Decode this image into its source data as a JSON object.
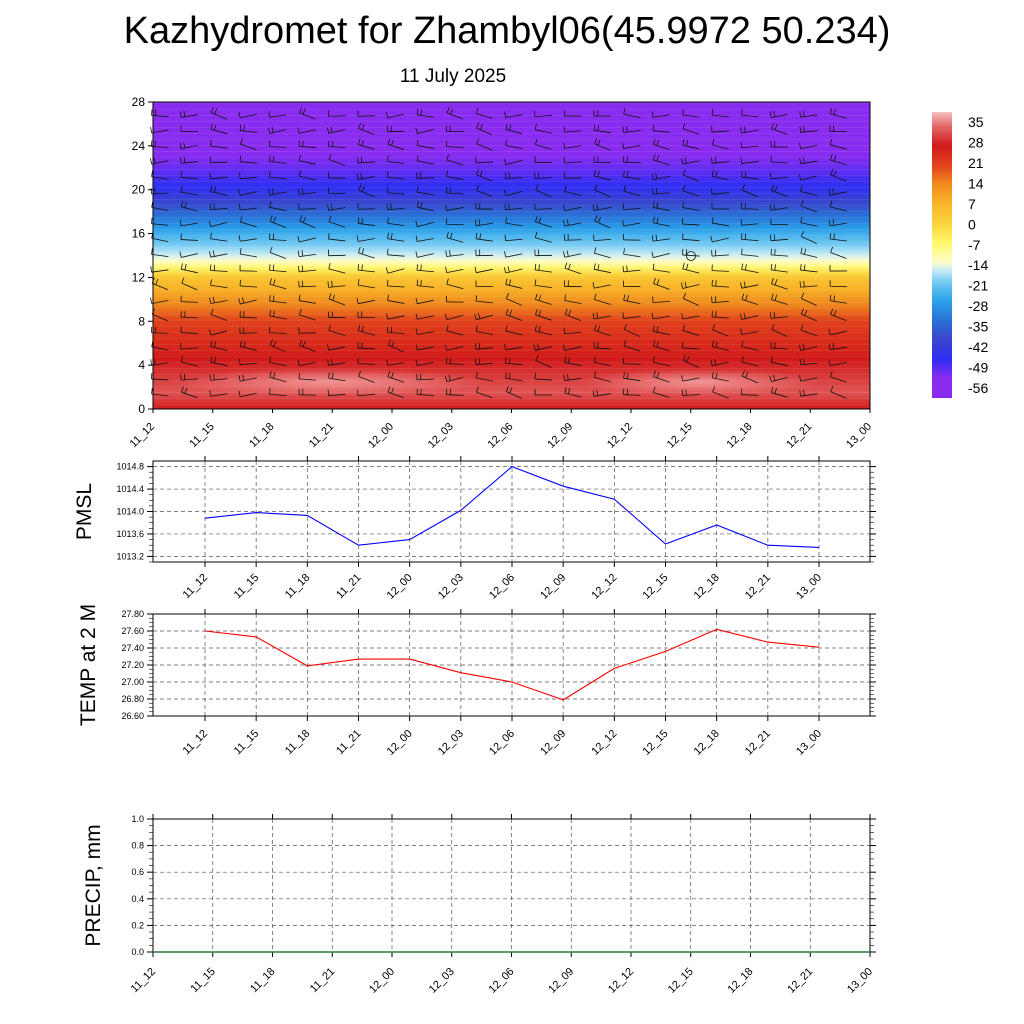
{
  "title": "Kazhydromet for Zhambyl06(45.9972 50.234)",
  "subtitle": "11 July 2025",
  "chart_data": [
    {
      "type": "heatmap",
      "title": "",
      "xlabel": "",
      "ylabel": "",
      "x_tick_labels": [
        "11_12",
        "11_15",
        "11_18",
        "11_21",
        "12_00",
        "12_03",
        "12_06",
        "12_09",
        "12_12",
        "12_15",
        "12_18",
        "12_21",
        "13_00"
      ],
      "y_tick_labels": [
        "0",
        "4",
        "8",
        "12",
        "16",
        "20",
        "24",
        "28"
      ],
      "ylim": [
        0,
        28
      ],
      "colorbar_labels": [
        "35",
        "28",
        "21",
        "14",
        "7",
        "0",
        "-7",
        "-14",
        "-21",
        "-28",
        "-35",
        "-42",
        "-49",
        "-56"
      ],
      "color_scale": [
        {
          "value": 40,
          "color": "#f2c0c0"
        },
        {
          "value": 35,
          "color": "#e56b6b"
        },
        {
          "value": 28,
          "color": "#d11a1a"
        },
        {
          "value": 21,
          "color": "#e0401c"
        },
        {
          "value": 14,
          "color": "#f08a1e"
        },
        {
          "value": 7,
          "color": "#f7b528"
        },
        {
          "value": 0,
          "color": "#fad23c"
        },
        {
          "value": -7,
          "color": "#fff86a"
        },
        {
          "value": -14,
          "color": "#fffbc8"
        },
        {
          "value": -17,
          "color": "#c6ecf8"
        },
        {
          "value": -21,
          "color": "#78cbf2"
        },
        {
          "value": -28,
          "color": "#2aa2ea"
        },
        {
          "value": -35,
          "color": "#2a70d6"
        },
        {
          "value": -42,
          "color": "#3a44cc"
        },
        {
          "value": -49,
          "color": "#2f2ff2"
        },
        {
          "value": -56,
          "color": "#8a2cf0"
        }
      ],
      "profile": [
        {
          "height": 0,
          "temp": 28
        },
        {
          "height": 1.5,
          "temp": 33
        },
        {
          "height": 4,
          "temp": 29
        },
        {
          "height": 8,
          "temp": 21
        },
        {
          "height": 12,
          "temp": 3
        },
        {
          "height": 13.5,
          "temp": -14
        },
        {
          "height": 16,
          "temp": -26
        },
        {
          "height": 20,
          "temp": -48
        },
        {
          "height": 21.5,
          "temp": -52
        },
        {
          "height": 24,
          "temp": -58
        },
        {
          "height": 28,
          "temp": -60
        }
      ]
    },
    {
      "type": "line",
      "title": "",
      "ylabel": "PMSL",
      "categories": [
        "11_12",
        "11_15",
        "11_18",
        "11_21",
        "12_00",
        "12_03",
        "12_06",
        "12_09",
        "12_12",
        "12_15",
        "12_18",
        "12_21",
        "13_00"
      ],
      "series": [
        {
          "name": "",
          "color": "#0000ff",
          "values": [
            1013.88,
            1013.98,
            1013.93,
            1013.4,
            1013.5,
            1014.02,
            1014.8,
            1014.45,
            1014.22,
            1013.42,
            1013.76,
            1013.4,
            1013.36
          ]
        }
      ],
      "ylim": [
        1013.1,
        1014.9
      ],
      "y_ticks": [
        1013.2,
        1013.6,
        1014.0,
        1014.4,
        1014.8
      ],
      "y_tick_labels": [
        "1013.2",
        "1013.6",
        "1014.0",
        "1014.4",
        "1014.8"
      ],
      "grid": true
    },
    {
      "type": "line",
      "title": "",
      "ylabel": "TEMP at 2 M",
      "categories": [
        "11_12",
        "11_15",
        "11_18",
        "11_21",
        "12_00",
        "12_03",
        "12_06",
        "12_09",
        "12_12",
        "12_15",
        "12_18",
        "12_21",
        "13_00"
      ],
      "series": [
        {
          "name": "",
          "color": "#ff0000",
          "values": [
            27.6,
            27.53,
            27.19,
            27.27,
            27.27,
            27.11,
            27.0,
            26.79,
            27.16,
            27.36,
            27.62,
            27.47,
            27.41
          ]
        }
      ],
      "ylim": [
        26.6,
        27.8
      ],
      "y_ticks": [
        26.6,
        26.8,
        27.0,
        27.2,
        27.4,
        27.6,
        27.8
      ],
      "y_tick_labels": [
        "26.60",
        "26.80",
        "27.00",
        "27.20",
        "27.40",
        "27.60",
        "27.80"
      ],
      "grid": true
    },
    {
      "type": "line",
      "title": "",
      "ylabel": "PRECIP, mm",
      "x_tick_labels": [
        "11_12",
        "11_15",
        "11_18",
        "11_21",
        "12_00",
        "12_03",
        "12_06",
        "12_09",
        "12_12",
        "12_15",
        "12_18",
        "12_21",
        "13_00"
      ],
      "series": [
        {
          "name": "",
          "color": "#2e7d32",
          "values": [
            0,
            0,
            0,
            0,
            0,
            0,
            0,
            0,
            0,
            0,
            0,
            0,
            0
          ]
        }
      ],
      "ylim": [
        0,
        1
      ],
      "y_ticks": [
        0,
        0.2,
        0.4,
        0.6,
        0.8,
        1.0
      ],
      "y_tick_labels": [
        "0.0",
        "0.2",
        "0.4",
        "0.6",
        "0.8",
        "1.0"
      ],
      "grid": true
    }
  ]
}
